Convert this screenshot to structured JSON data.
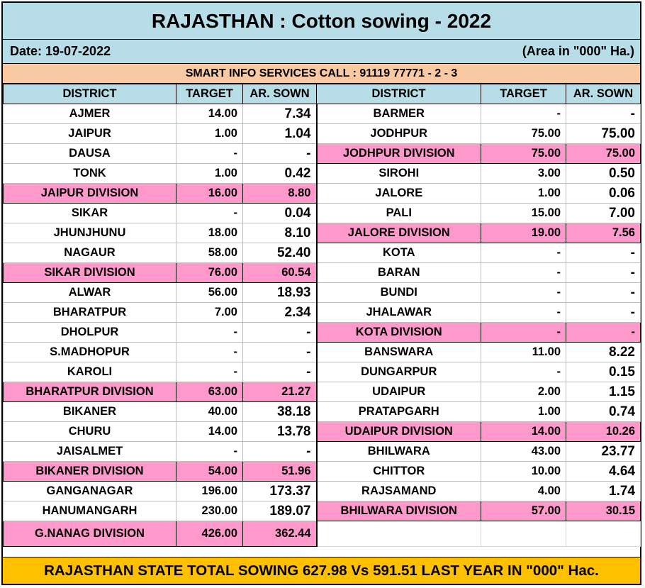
{
  "title": "RAJASTHAN : Cotton sowing - 2022",
  "date": "Date: 19-07-2022",
  "unit_note": "(Area in \"000\" Ha.)",
  "call_line": "SMART INFO SERVICES CALL : 91119 77771 - 2 - 3",
  "headers": {
    "district": "DISTRICT",
    "target": "TARGET",
    "sown": "AR. SOWN"
  },
  "left_rows": [
    {
      "name": "AJMER",
      "target": "14.00",
      "sown": "7.34",
      "division": false
    },
    {
      "name": "JAIPUR",
      "target": "1.00",
      "sown": "1.04",
      "division": false
    },
    {
      "name": "DAUSA",
      "target": "-",
      "sown": "-",
      "division": false
    },
    {
      "name": "TONK",
      "target": "1.00",
      "sown": "0.42",
      "division": false
    },
    {
      "name": "JAIPUR DIVISION",
      "target": "16.00",
      "sown": "8.80",
      "division": true
    },
    {
      "name": "SIKAR",
      "target": "-",
      "sown": "0.04",
      "division": false
    },
    {
      "name": "JHUNJHUNU",
      "target": "18.00",
      "sown": "8.10",
      "division": false
    },
    {
      "name": "NAGAUR",
      "target": "58.00",
      "sown": "52.40",
      "division": false
    },
    {
      "name": "SIKAR DIVISION",
      "target": "76.00",
      "sown": "60.54",
      "division": true
    },
    {
      "name": "ALWAR",
      "target": "56.00",
      "sown": "18.93",
      "division": false
    },
    {
      "name": "BHARATPUR",
      "target": "7.00",
      "sown": "2.34",
      "division": false
    },
    {
      "name": "DHOLPUR",
      "target": "-",
      "sown": "-",
      "division": false
    },
    {
      "name": "S.MADHOPUR",
      "target": "-",
      "sown": "-",
      "division": false
    },
    {
      "name": "KAROLI",
      "target": "-",
      "sown": "-",
      "division": false
    },
    {
      "name": "BHARATPUR DIVISION",
      "target": "63.00",
      "sown": "21.27",
      "division": true
    },
    {
      "name": "BIKANER",
      "target": "40.00",
      "sown": "38.18",
      "division": false
    },
    {
      "name": "CHURU",
      "target": "14.00",
      "sown": "13.78",
      "division": false
    },
    {
      "name": "JAISALMET",
      "target": "-",
      "sown": "-",
      "division": false
    },
    {
      "name": "BIKANER DIVISION",
      "target": "54.00",
      "sown": "51.96",
      "division": true
    },
    {
      "name": "GANGANAGAR",
      "target": "196.00",
      "sown": "173.37",
      "division": false
    },
    {
      "name": "HANUMANGARH",
      "target": "230.00",
      "sown": "189.07",
      "division": false
    },
    {
      "name": "G.NANAG DIVISION",
      "target": "426.00",
      "sown": "362.44",
      "division": true
    }
  ],
  "right_rows": [
    {
      "name": "BARMER",
      "target": "-",
      "sown": "-",
      "division": false
    },
    {
      "name": "JODHPUR",
      "target": "75.00",
      "sown": "75.00",
      "division": false
    },
    {
      "name": "JODHPUR DIVISION",
      "target": "75.00",
      "sown": "75.00",
      "division": true
    },
    {
      "name": "SIROHI",
      "target": "3.00",
      "sown": "0.50",
      "division": false
    },
    {
      "name": "JALORE",
      "target": "1.00",
      "sown": "0.06",
      "division": false
    },
    {
      "name": "PALI",
      "target": "15.00",
      "sown": "7.00",
      "division": false
    },
    {
      "name": "JALORE DIVISION",
      "target": "19.00",
      "sown": "7.56",
      "division": true
    },
    {
      "name": "KOTA",
      "target": "-",
      "sown": "-",
      "division": false
    },
    {
      "name": "BARAN",
      "target": "-",
      "sown": "-",
      "division": false
    },
    {
      "name": "BUNDI",
      "target": "-",
      "sown": "-",
      "division": false
    },
    {
      "name": "JHALAWAR",
      "target": "-",
      "sown": "-",
      "division": false
    },
    {
      "name": "KOTA DIVISION",
      "target": "-",
      "sown": "-",
      "division": true
    },
    {
      "name": "BANSWARA",
      "target": "11.00",
      "sown": "8.22",
      "division": false
    },
    {
      "name": "DUNGARPUR",
      "target": "-",
      "sown": "0.15",
      "division": false
    },
    {
      "name": "UDAIPUR",
      "target": "2.00",
      "sown": "1.15",
      "division": false
    },
    {
      "name": "PRATAPGARH",
      "target": "1.00",
      "sown": "0.74",
      "division": false
    },
    {
      "name": "UDAIPUR DIVISION",
      "target": "14.00",
      "sown": "10.26",
      "division": true
    },
    {
      "name": "BHILWARA",
      "target": "43.00",
      "sown": "23.77",
      "division": false
    },
    {
      "name": "CHITTOR",
      "target": "10.00",
      "sown": "4.64",
      "division": false
    },
    {
      "name": "RAJSAMAND",
      "target": "4.00",
      "sown": "1.74",
      "division": false
    },
    {
      "name": "BHILWARA DIVISION",
      "target": "57.00",
      "sown": "30.15",
      "division": true
    },
    {
      "name": "",
      "target": "",
      "sown": "",
      "division": false
    }
  ],
  "total_line": "RAJASTHAN STATE TOTAL SOWING 627.98 Vs 591.51 LAST YEAR IN \"000\" Hac.",
  "colors": {
    "header_band": "#b7dee8",
    "call_band": "#f8c9a2",
    "division_fill": "#ff99cc",
    "total_band": "#ffc000"
  }
}
